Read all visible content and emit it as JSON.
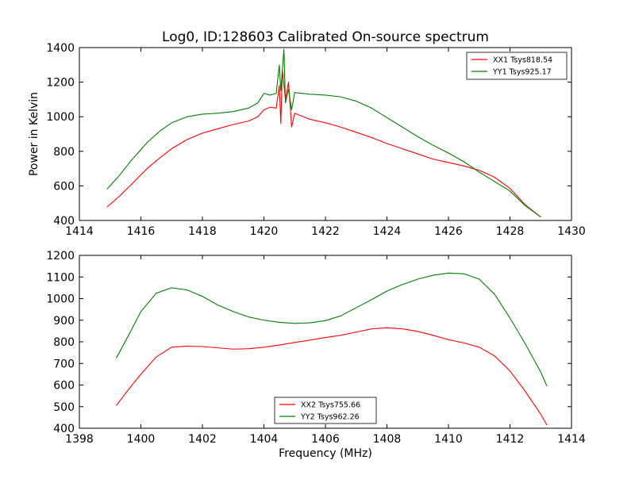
{
  "chart_data": [
    {
      "type": "line",
      "title": "Log0, ID:128603 Calibrated On-source spectrum",
      "xlabel": "",
      "ylabel": "Power in Kelvin",
      "xlim": [
        1414,
        1430
      ],
      "ylim": [
        400,
        1400
      ],
      "xticks": [
        "1414",
        "1416",
        "1418",
        "1420",
        "1422",
        "1424",
        "1426",
        "1428",
        "1430"
      ],
      "yticks": [
        "400",
        "600",
        "800",
        "1000",
        "1200",
        "1400"
      ],
      "legend_position": "top-right",
      "grid": false,
      "series": [
        {
          "name": "XX1 Tsys818.54",
          "color": "#ff0000",
          "points": [
            [
              1414.9,
              478
            ],
            [
              1415.3,
              540
            ],
            [
              1415.7,
              610
            ],
            [
              1416.2,
              700
            ],
            [
              1416.6,
              760
            ],
            [
              1417.0,
              815
            ],
            [
              1417.5,
              868
            ],
            [
              1418.0,
              905
            ],
            [
              1418.5,
              930
            ],
            [
              1419.0,
              955
            ],
            [
              1419.5,
              975
            ],
            [
              1419.8,
              1000
            ],
            [
              1420.0,
              1040
            ],
            [
              1420.2,
              1055
            ],
            [
              1420.4,
              1050
            ],
            [
              1420.5,
              1180
            ],
            [
              1420.55,
              960
            ],
            [
              1420.6,
              1270
            ],
            [
              1420.7,
              1100
            ],
            [
              1420.8,
              1200
            ],
            [
              1420.9,
              940
            ],
            [
              1421.0,
              1020
            ],
            [
              1421.5,
              985
            ],
            [
              1422.0,
              965
            ],
            [
              1422.5,
              940
            ],
            [
              1423.0,
              910
            ],
            [
              1423.5,
              880
            ],
            [
              1424.0,
              845
            ],
            [
              1424.5,
              815
            ],
            [
              1425.0,
              785
            ],
            [
              1425.5,
              755
            ],
            [
              1426.0,
              735
            ],
            [
              1426.5,
              715
            ],
            [
              1427.0,
              690
            ],
            [
              1427.5,
              650
            ],
            [
              1428.0,
              585
            ],
            [
              1428.5,
              490
            ],
            [
              1429.0,
              420
            ]
          ]
        },
        {
          "name": "YY1 Tsys925.17",
          "color": "#008000",
          "points": [
            [
              1414.9,
              582
            ],
            [
              1415.3,
              660
            ],
            [
              1415.7,
              750
            ],
            [
              1416.2,
              850
            ],
            [
              1416.6,
              915
            ],
            [
              1417.0,
              965
            ],
            [
              1417.5,
              1000
            ],
            [
              1418.0,
              1015
            ],
            [
              1418.5,
              1020
            ],
            [
              1419.0,
              1030
            ],
            [
              1419.5,
              1050
            ],
            [
              1419.8,
              1080
            ],
            [
              1420.0,
              1135
            ],
            [
              1420.2,
              1125
            ],
            [
              1420.4,
              1135
            ],
            [
              1420.5,
              1300
            ],
            [
              1420.55,
              1150
            ],
            [
              1420.65,
              1390
            ],
            [
              1420.7,
              1080
            ],
            [
              1420.8,
              1160
            ],
            [
              1420.9,
              1040
            ],
            [
              1421.0,
              1140
            ],
            [
              1421.5,
              1130
            ],
            [
              1422.0,
              1125
            ],
            [
              1422.5,
              1115
            ],
            [
              1423.0,
              1090
            ],
            [
              1423.5,
              1050
            ],
            [
              1424.0,
              995
            ],
            [
              1424.5,
              940
            ],
            [
              1425.0,
              885
            ],
            [
              1425.5,
              835
            ],
            [
              1426.0,
              790
            ],
            [
              1426.5,
              740
            ],
            [
              1427.0,
              680
            ],
            [
              1427.5,
              625
            ],
            [
              1428.0,
              570
            ],
            [
              1428.5,
              485
            ],
            [
              1429.0,
              420
            ]
          ]
        }
      ]
    },
    {
      "type": "line",
      "title": "",
      "xlabel": "Frequency (MHz)",
      "ylabel": "",
      "xlim": [
        1398,
        1414
      ],
      "ylim": [
        400,
        1200
      ],
      "xticks": [
        "1398",
        "1400",
        "1402",
        "1404",
        "1406",
        "1408",
        "1410",
        "1412",
        "1414"
      ],
      "yticks": [
        "400",
        "500",
        "600",
        "700",
        "800",
        "900",
        "1000",
        "1100",
        "1200"
      ],
      "legend_position": "bottom-center",
      "grid": false,
      "series": [
        {
          "name": "XX2 Tsys755.66",
          "color": "#ff0000",
          "points": [
            [
              1399.2,
              505
            ],
            [
              1399.6,
              580
            ],
            [
              1400.0,
              650
            ],
            [
              1400.5,
              730
            ],
            [
              1401.0,
              775
            ],
            [
              1401.5,
              780
            ],
            [
              1402.0,
              778
            ],
            [
              1402.5,
              772
            ],
            [
              1403.0,
              766
            ],
            [
              1403.5,
              768
            ],
            [
              1404.0,
              775
            ],
            [
              1404.5,
              785
            ],
            [
              1405.0,
              797
            ],
            [
              1405.5,
              808
            ],
            [
              1406.0,
              820
            ],
            [
              1406.5,
              830
            ],
            [
              1407.0,
              845
            ],
            [
              1407.5,
              860
            ],
            [
              1408.0,
              865
            ],
            [
              1408.5,
              860
            ],
            [
              1409.0,
              848
            ],
            [
              1409.5,
              830
            ],
            [
              1410.0,
              810
            ],
            [
              1410.5,
              795
            ],
            [
              1411.0,
              775
            ],
            [
              1411.5,
              735
            ],
            [
              1412.0,
              665
            ],
            [
              1412.5,
              570
            ],
            [
              1413.0,
              465
            ],
            [
              1413.2,
              415
            ]
          ]
        },
        {
          "name": "YY2 Tsys962.26",
          "color": "#008000",
          "points": [
            [
              1399.2,
              725
            ],
            [
              1399.6,
              830
            ],
            [
              1400.0,
              940
            ],
            [
              1400.5,
              1025
            ],
            [
              1401.0,
              1050
            ],
            [
              1401.5,
              1040
            ],
            [
              1402.0,
              1010
            ],
            [
              1402.5,
              970
            ],
            [
              1403.0,
              940
            ],
            [
              1403.5,
              915
            ],
            [
              1404.0,
              900
            ],
            [
              1404.5,
              890
            ],
            [
              1405.0,
              885
            ],
            [
              1405.5,
              888
            ],
            [
              1406.0,
              898
            ],
            [
              1406.5,
              920
            ],
            [
              1407.0,
              958
            ],
            [
              1407.5,
              995
            ],
            [
              1408.0,
              1035
            ],
            [
              1408.5,
              1065
            ],
            [
              1409.0,
              1090
            ],
            [
              1409.5,
              1108
            ],
            [
              1410.0,
              1118
            ],
            [
              1410.5,
              1115
            ],
            [
              1411.0,
              1090
            ],
            [
              1411.5,
              1020
            ],
            [
              1412.0,
              910
            ],
            [
              1412.5,
              790
            ],
            [
              1413.0,
              660
            ],
            [
              1413.2,
              595
            ]
          ]
        }
      ]
    }
  ]
}
